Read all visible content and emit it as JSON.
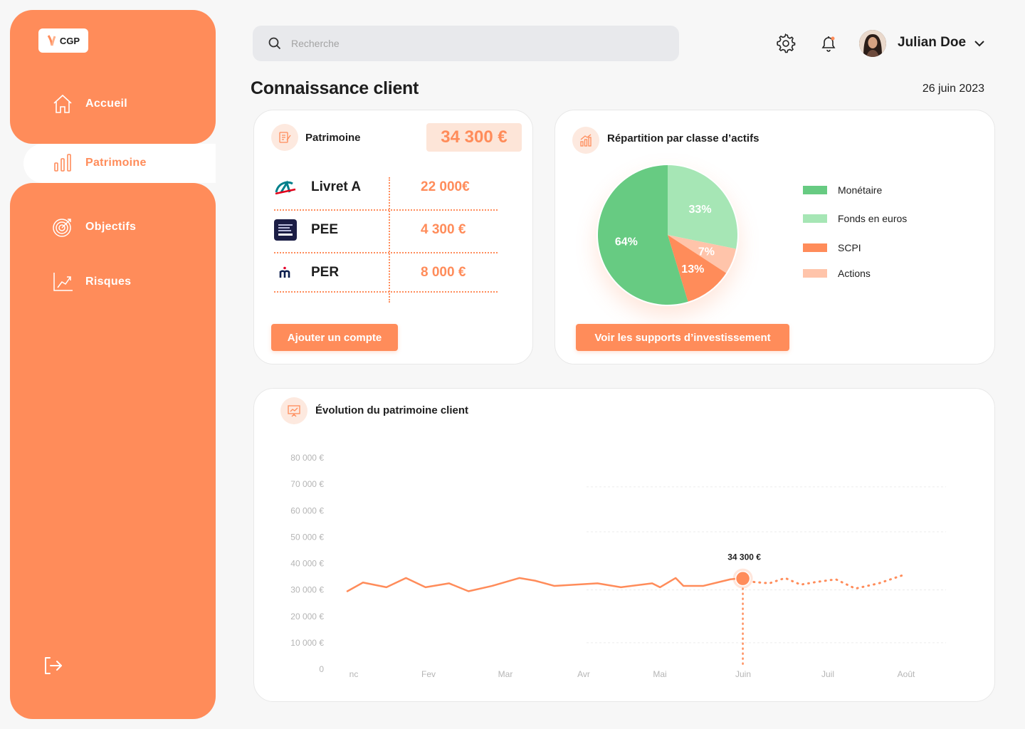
{
  "app": {
    "logo_text": "CGP"
  },
  "sidebar": {
    "items": [
      {
        "label": "Accueil",
        "icon": "home-icon"
      },
      {
        "label": "Patrimoine",
        "icon": "bar-chart-icon",
        "active": true
      },
      {
        "label": "Objectifs",
        "icon": "target-icon"
      },
      {
        "label": "Risques",
        "icon": "trend-up-icon"
      }
    ],
    "logout_icon": "logout-icon"
  },
  "header": {
    "search_placeholder": "Recherche",
    "user_name": "Julian Doe"
  },
  "page": {
    "title": "Connaissance client",
    "date": "26 juin 2023"
  },
  "patrimoine": {
    "title": "Patrimoine",
    "total": "34 300 €",
    "accounts": [
      {
        "name": "Livret A",
        "value": "22 000€",
        "bank": "Crédit Agricole"
      },
      {
        "name": "PEE",
        "value": "4 300 €",
        "bank": "Amundi"
      },
      {
        "name": "PER",
        "value": "8 000 €",
        "bank": "Malakoff"
      }
    ],
    "add_button": "Ajouter un compte"
  },
  "repartition": {
    "title": "Répartition par classe d’actifs",
    "button": "Voir les supports d’investissement",
    "colors": {
      "Monétaire": "#67cb82",
      "Fonds en euros": "#a6e6b5",
      "SCPI": "#ff8c5a",
      "Actions": "#ffc4aa"
    },
    "slice_labels": [
      "64%",
      "33%",
      "7%",
      "13%"
    ]
  },
  "evolution": {
    "title": "Évolution du patrimoine client",
    "tooltip": "34 300 €"
  },
  "chart_data": [
    {
      "type": "pie",
      "title": "Répartition par classe d’actifs",
      "categories": [
        "Monétaire",
        "Fonds en euros",
        "Actions",
        "SCPI"
      ],
      "values": [
        64,
        33,
        7,
        13
      ],
      "legend": [
        "Monétaire",
        "Fonds en euros",
        "SCPI",
        "Actions"
      ],
      "legend_position": "right"
    },
    {
      "type": "line",
      "title": "Évolution du patrimoine client",
      "x_ticks": [
        "nc",
        "Fev",
        "Mar",
        "Avr",
        "Mai",
        "Juin",
        "Juil",
        "Août"
      ],
      "y_ticks": [
        "0",
        "10 000 €",
        "20 000 €",
        "30 000 €",
        "40 000 €",
        "50 000 €",
        "60 000 €",
        "70 000 €",
        "80 000 €"
      ],
      "ylim": [
        0,
        80000
      ],
      "series": [
        {
          "style": "solid",
          "x": [
            0,
            0.2,
            0.5,
            0.75,
            1.0,
            1.3,
            1.55,
            1.85,
            2.2,
            2.4,
            2.65,
            3.2,
            3.5,
            3.9,
            4.0,
            4.2,
            4.3,
            4.55,
            4.9,
            5.0,
            5.06
          ],
          "y": [
            29500,
            32800,
            31000,
            34500,
            31000,
            32500,
            29500,
            31500,
            34500,
            33500,
            31500,
            32500,
            31000,
            32500,
            31000,
            34500,
            31500,
            31500,
            34000,
            34300,
            34300
          ]
        },
        {
          "style": "dotted",
          "x": [
            5.06,
            5.2,
            5.4,
            5.6,
            5.8,
            6.0,
            6.25,
            6.5,
            6.8,
            7.1
          ],
          "y": [
            34300,
            33000,
            32500,
            34500,
            32000,
            33000,
            34000,
            30500,
            32500,
            35500
          ]
        }
      ],
      "highlight": {
        "x": 5.06,
        "y": 34300,
        "label": "34 300 €"
      },
      "grid": true
    }
  ]
}
